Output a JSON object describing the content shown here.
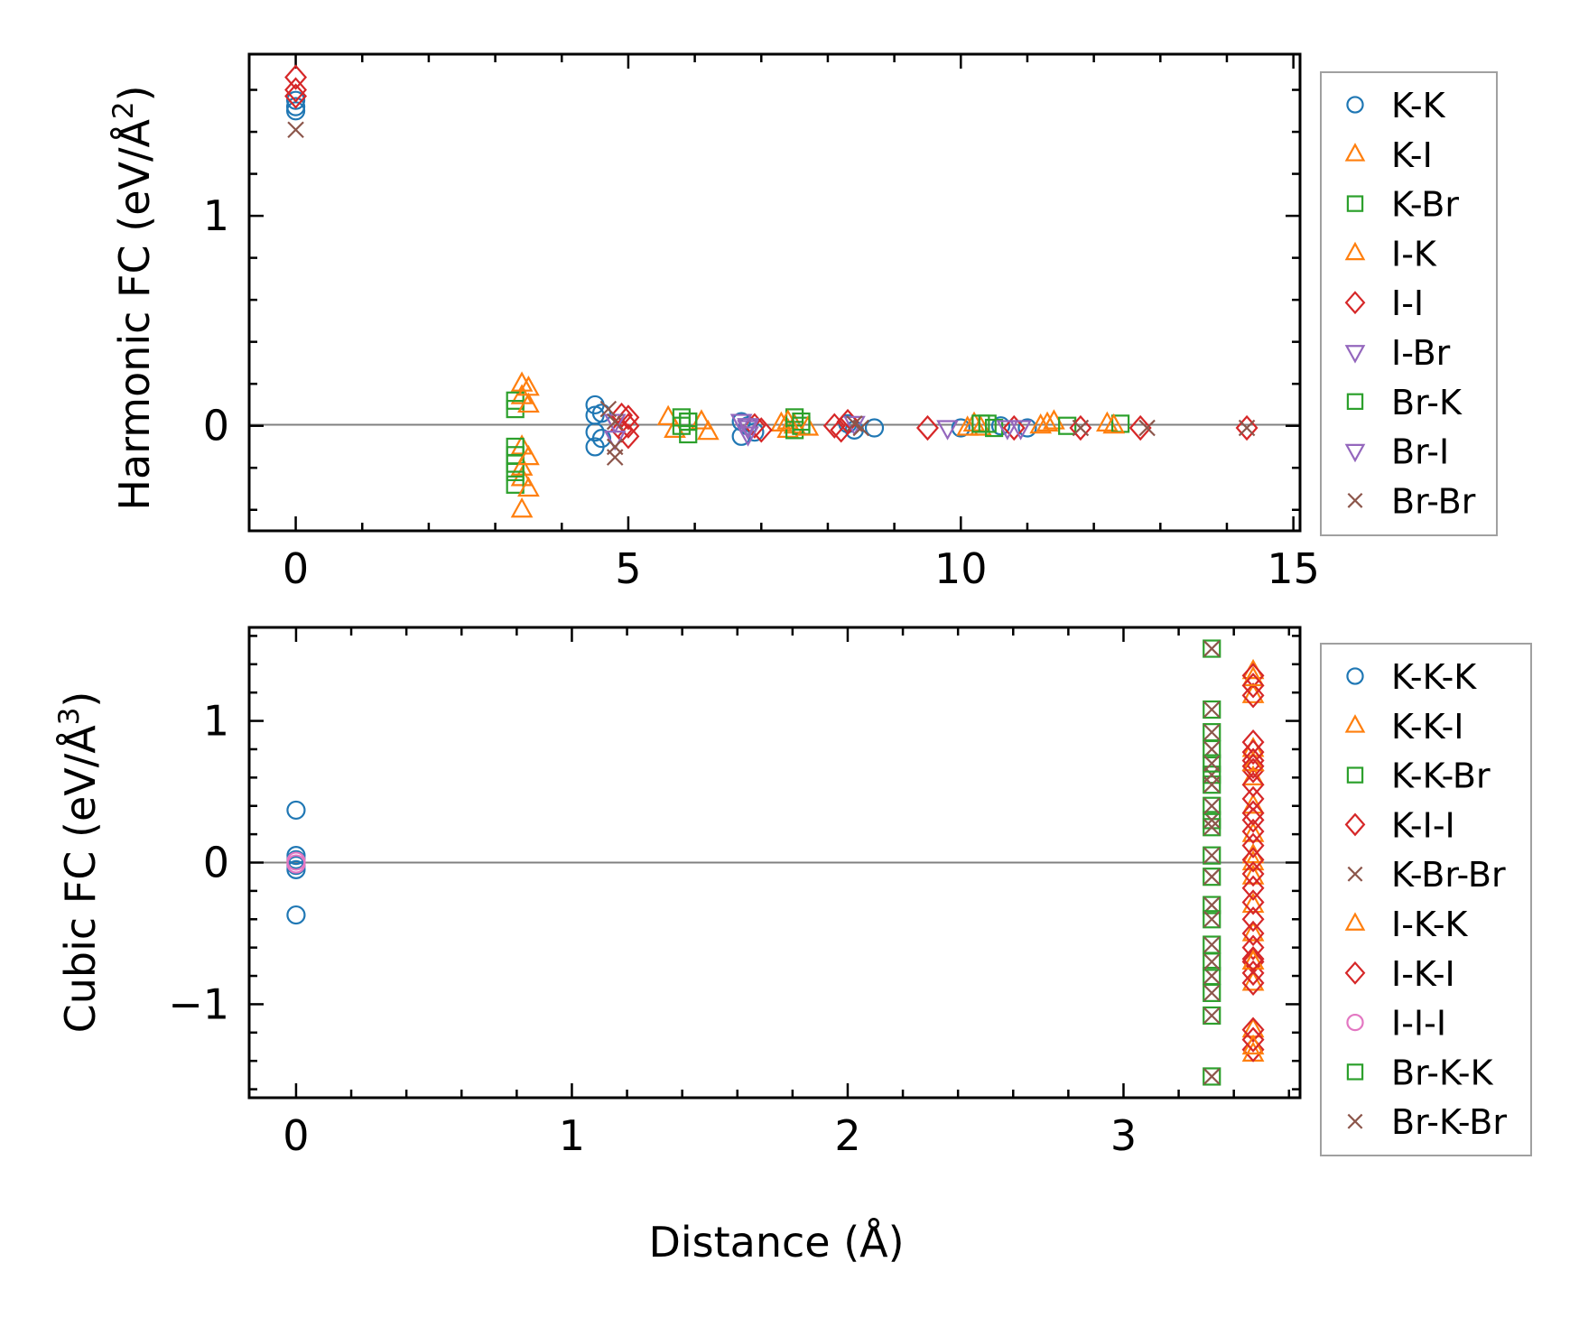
{
  "chart_data": [
    {
      "type": "scatter",
      "xlabel": "",
      "ylabel": "Harmonic FC (eV/Å²)",
      "ylabel_parts": {
        "base": "Harmonic FC (eV/Å",
        "sup": "2",
        "close": ")"
      },
      "xlim": [
        -0.7,
        15.1
      ],
      "ylim": [
        -0.5,
        1.77
      ],
      "xticks": [
        0,
        5,
        10,
        15
      ],
      "xtick_labels": [
        "0",
        "5",
        "10",
        "15"
      ],
      "yticks": [
        0,
        1
      ],
      "ytick_labels": [
        "0",
        "1"
      ],
      "hline": 0,
      "legend_position": "outside-right",
      "series": [
        {
          "name": "K-K",
          "marker": "circle",
          "color": "#1f77b4",
          "x": [
            0,
            0,
            0,
            4.5,
            4.5,
            4.5,
            4.5,
            4.6,
            4.6,
            6.7,
            6.7,
            6.8,
            6.9,
            8.3,
            8.4,
            8.7,
            10.0,
            10.6,
            11.0
          ],
          "y": [
            1.55,
            1.52,
            1.5,
            0.1,
            0.05,
            -0.03,
            -0.1,
            0.06,
            -0.06,
            0.02,
            -0.05,
            0.0,
            -0.03,
            0.01,
            -0.02,
            -0.01,
            -0.01,
            0.0,
            -0.01
          ]
        },
        {
          "name": "K-I",
          "marker": "triangle-up",
          "color": "#ff7f0e",
          "x": [
            3.4,
            3.4,
            3.4,
            3.4,
            3.4,
            3.4,
            5.6,
            5.7,
            6.1,
            6.2,
            7.3,
            7.4,
            7.5,
            10.2,
            10.3,
            11.2,
            11.4,
            12.2
          ],
          "y": [
            0.2,
            0.14,
            -0.1,
            -0.2,
            -0.25,
            -0.4,
            0.04,
            -0.02,
            0.02,
            -0.03,
            0.01,
            -0.02,
            0.0,
            0.01,
            -0.01,
            0.0,
            0.02,
            0.01
          ]
        },
        {
          "name": "K-Br",
          "marker": "square",
          "color": "#2ca02c",
          "x": [
            3.3,
            3.3,
            3.3,
            3.3,
            3.3,
            3.3,
            3.3,
            5.8,
            5.8,
            5.9,
            5.9,
            7.5,
            7.5,
            7.6,
            10.4,
            10.5,
            11.6,
            12.4
          ],
          "y": [
            0.12,
            0.08,
            -0.1,
            -0.14,
            -0.18,
            -0.22,
            -0.28,
            0.04,
            0.0,
            -0.04,
            0.02,
            0.04,
            -0.02,
            0.0,
            0.01,
            -0.01,
            0.0,
            0.01
          ]
        },
        {
          "name": "I-K",
          "marker": "triangle-up",
          "color": "#ff7f0e",
          "x": [
            3.5,
            3.5,
            3.5,
            3.5,
            7.4,
            7.7,
            10.1,
            11.3,
            12.3
          ],
          "y": [
            0.18,
            0.1,
            -0.15,
            -0.3,
            0.02,
            -0.01,
            -0.01,
            0.01,
            0.0
          ]
        },
        {
          "name": "I-I",
          "marker": "diamond",
          "color": "#d62728",
          "x": [
            0,
            0,
            0,
            4.9,
            4.9,
            5.0,
            5.0,
            5.0,
            6.9,
            7.0,
            8.1,
            8.2,
            8.3,
            9.5,
            10.8,
            11.8,
            12.7,
            14.3
          ],
          "y": [
            1.66,
            1.6,
            1.57,
            0.05,
            -0.02,
            0.04,
            -0.05,
            0.0,
            0.0,
            -0.02,
            0.0,
            -0.02,
            0.02,
            -0.01,
            -0.01,
            -0.01,
            -0.01,
            -0.01
          ]
        },
        {
          "name": "I-Br",
          "marker": "triangle-down",
          "color": "#9467bd",
          "x": [
            4.8,
            4.8,
            6.7,
            6.8,
            6.8,
            9.8,
            10.7
          ],
          "y": [
            0.02,
            -0.06,
            0.02,
            -0.01,
            -0.04,
            -0.01,
            -0.01
          ]
        },
        {
          "name": "Br-K",
          "marker": "square",
          "color": "#2ca02c",
          "x": [
            5.9,
            7.6,
            10.3
          ],
          "y": [
            0.02,
            0.02,
            0.01
          ]
        },
        {
          "name": "Br-I",
          "marker": "triangle-down",
          "color": "#9467bd",
          "x": [
            6.8,
            8.4,
            10.9
          ],
          "y": [
            0.0,
            0.01,
            -0.01
          ]
        },
        {
          "name": "Br-Br",
          "marker": "x",
          "color": "#8c564b",
          "x": [
            0,
            4.7,
            4.8,
            4.8,
            4.8,
            8.4,
            8.5,
            11.8,
            12.8,
            14.3
          ],
          "y": [
            1.41,
            0.08,
            0.02,
            -0.1,
            -0.15,
            0.01,
            -0.01,
            -0.01,
            -0.01,
            -0.01
          ]
        }
      ]
    },
    {
      "type": "scatter",
      "xlabel": "Distance (Å)",
      "ylabel": "Cubic FC (eV/Å³)",
      "ylabel_parts": {
        "base": "Cubic FC (eV/Å",
        "sup": "3",
        "close": ")"
      },
      "xlim": [
        -0.17,
        3.64
      ],
      "ylim": [
        -1.66,
        1.66
      ],
      "xticks": [
        0,
        1,
        2,
        3
      ],
      "xtick_labels": [
        "0",
        "1",
        "2",
        "3"
      ],
      "yticks": [
        -1,
        0,
        1
      ],
      "ytick_labels": [
        "−1",
        "0",
        "1"
      ],
      "hline": 0,
      "legend_position": "outside-right",
      "series": [
        {
          "name": "K-K-K",
          "marker": "circle",
          "color": "#1f77b4",
          "x": [
            0,
            0,
            0,
            0,
            0,
            0
          ],
          "y": [
            0.37,
            0.05,
            0.02,
            -0.02,
            -0.05,
            -0.37
          ]
        },
        {
          "name": "K-K-I",
          "marker": "triangle-up",
          "color": "#ff7f0e",
          "x": [
            3.47,
            3.47,
            3.47,
            3.47,
            3.47,
            3.47,
            3.47,
            3.47,
            3.47,
            3.47,
            3.47,
            3.47,
            3.47,
            3.47,
            3.47
          ],
          "y": [
            1.35,
            1.18,
            0.8,
            0.6,
            0.4,
            0.2,
            0.05,
            -0.1,
            -0.3,
            -0.5,
            -0.7,
            -0.85,
            -1.18,
            -1.35,
            0.0
          ]
        },
        {
          "name": "K-K-Br",
          "marker": "square",
          "color": "#2ca02c",
          "x": [
            3.32,
            3.32,
            3.32,
            3.32,
            3.32,
            3.32,
            3.32,
            3.32,
            3.32,
            3.32,
            3.32,
            3.32,
            3.32,
            3.32,
            3.32,
            3.32
          ],
          "y": [
            1.51,
            1.08,
            0.92,
            0.8,
            0.62,
            0.55,
            0.3,
            0.25,
            0.05,
            -0.1,
            -0.3,
            -0.58,
            -0.8,
            -0.92,
            -1.08,
            -1.51
          ]
        },
        {
          "name": "K-I-I",
          "marker": "diamond",
          "color": "#d62728",
          "x": [
            3.47,
            3.47,
            3.47,
            3.47,
            3.47,
            3.47,
            3.47,
            3.47,
            3.47,
            3.47,
            3.47,
            3.47,
            3.47,
            3.47,
            3.47,
            3.47,
            3.47,
            3.47,
            3.47,
            3.47,
            3.47,
            3.47,
            3.47,
            3.47
          ],
          "y": [
            1.32,
            1.18,
            0.85,
            0.78,
            0.72,
            0.65,
            0.55,
            0.45,
            0.35,
            0.22,
            0.12,
            0.02,
            -0.08,
            -0.18,
            -0.28,
            -0.4,
            -0.5,
            -0.6,
            -0.7,
            -0.78,
            -0.85,
            -1.18,
            -1.32,
            0.3
          ]
        },
        {
          "name": "K-Br-Br",
          "marker": "x",
          "color": "#8c564b",
          "x": [
            3.32,
            3.32,
            3.32,
            3.32,
            3.32,
            3.32,
            3.32,
            3.32,
            3.32,
            3.32,
            3.32,
            3.32,
            3.32,
            3.32,
            3.32,
            3.32
          ],
          "y": [
            1.51,
            1.08,
            0.92,
            0.8,
            0.62,
            0.55,
            0.3,
            0.25,
            0.05,
            -0.1,
            -0.3,
            -0.58,
            -0.8,
            -0.92,
            -1.08,
            -1.51
          ]
        },
        {
          "name": "I-K-K",
          "marker": "triangle-up",
          "color": "#ff7f0e",
          "x": [
            3.47,
            3.47,
            3.47,
            3.47
          ],
          "y": [
            1.3,
            0.7,
            -0.7,
            -1.3
          ]
        },
        {
          "name": "I-K-I",
          "marker": "diamond",
          "color": "#d62728",
          "x": [
            3.47,
            3.47,
            3.47,
            3.47
          ],
          "y": [
            1.25,
            0.68,
            -0.68,
            -1.25
          ]
        },
        {
          "name": "I-I-I",
          "marker": "circle",
          "color": "#e377c2",
          "x": [
            0,
            0
          ],
          "y": [
            0.01,
            -0.01
          ]
        },
        {
          "name": "Br-K-K",
          "marker": "square",
          "color": "#2ca02c",
          "x": [
            3.32,
            3.32,
            3.32,
            3.32
          ],
          "y": [
            0.7,
            0.4,
            -0.4,
            -0.7
          ]
        },
        {
          "name": "Br-K-Br",
          "marker": "x",
          "color": "#8c564b",
          "x": [
            3.32,
            3.32,
            3.32,
            3.32
          ],
          "y": [
            0.7,
            0.4,
            -0.4,
            -0.7
          ]
        }
      ]
    }
  ]
}
